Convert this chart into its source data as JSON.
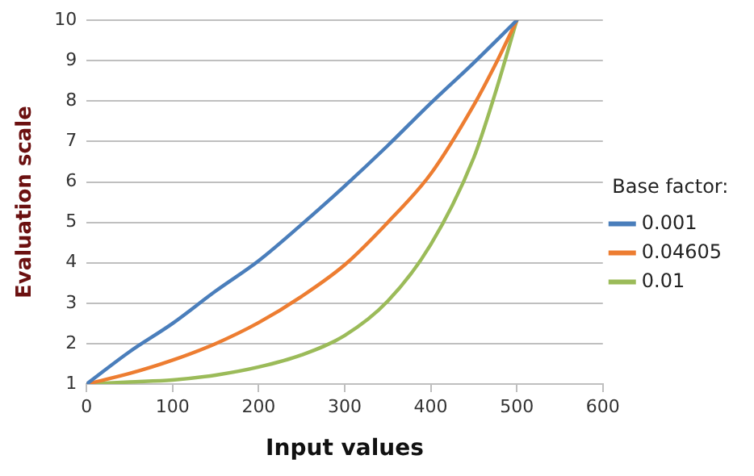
{
  "chart_data": {
    "type": "line",
    "xlabel": "Input values",
    "ylabel": "Evaluation scale",
    "legend_title": "Base factor:",
    "legend": "right",
    "grid": "y",
    "marker": "none",
    "line_style": "solid",
    "xlim": [
      0,
      600
    ],
    "xticks": [
      0,
      100,
      200,
      300,
      400,
      500,
      600
    ],
    "ylim": [
      1,
      10
    ],
    "yticks": [
      1,
      2,
      3,
      4,
      5,
      6,
      7,
      8,
      9,
      10
    ],
    "series": [
      {
        "name": "0.001",
        "color": "#4a7ebb",
        "x": [
          0,
          50,
          100,
          150,
          200,
          250,
          300,
          350,
          400,
          450,
          500
        ],
        "values": [
          1,
          1.8,
          2.5,
          3.3,
          4.05,
          4.95,
          5.9,
          6.9,
          7.95,
          8.95,
          10
        ]
      },
      {
        "name": "0.04605",
        "color": "#ed7d31",
        "x": [
          0,
          50,
          100,
          150,
          200,
          250,
          300,
          350,
          400,
          450,
          475,
          500
        ],
        "values": [
          1,
          1.26,
          1.59,
          2,
          2.52,
          3.17,
          3.95,
          5,
          6.2,
          7.9,
          8.9,
          10
        ]
      },
      {
        "name": "0.01",
        "color": "#9bbb59",
        "x": [
          0,
          50,
          100,
          150,
          200,
          250,
          300,
          350,
          400,
          450,
          475,
          500
        ],
        "values": [
          1,
          1.05,
          1.1,
          1.22,
          1.42,
          1.72,
          2.2,
          3.05,
          4.45,
          6.6,
          8.2,
          10
        ]
      }
    ]
  }
}
